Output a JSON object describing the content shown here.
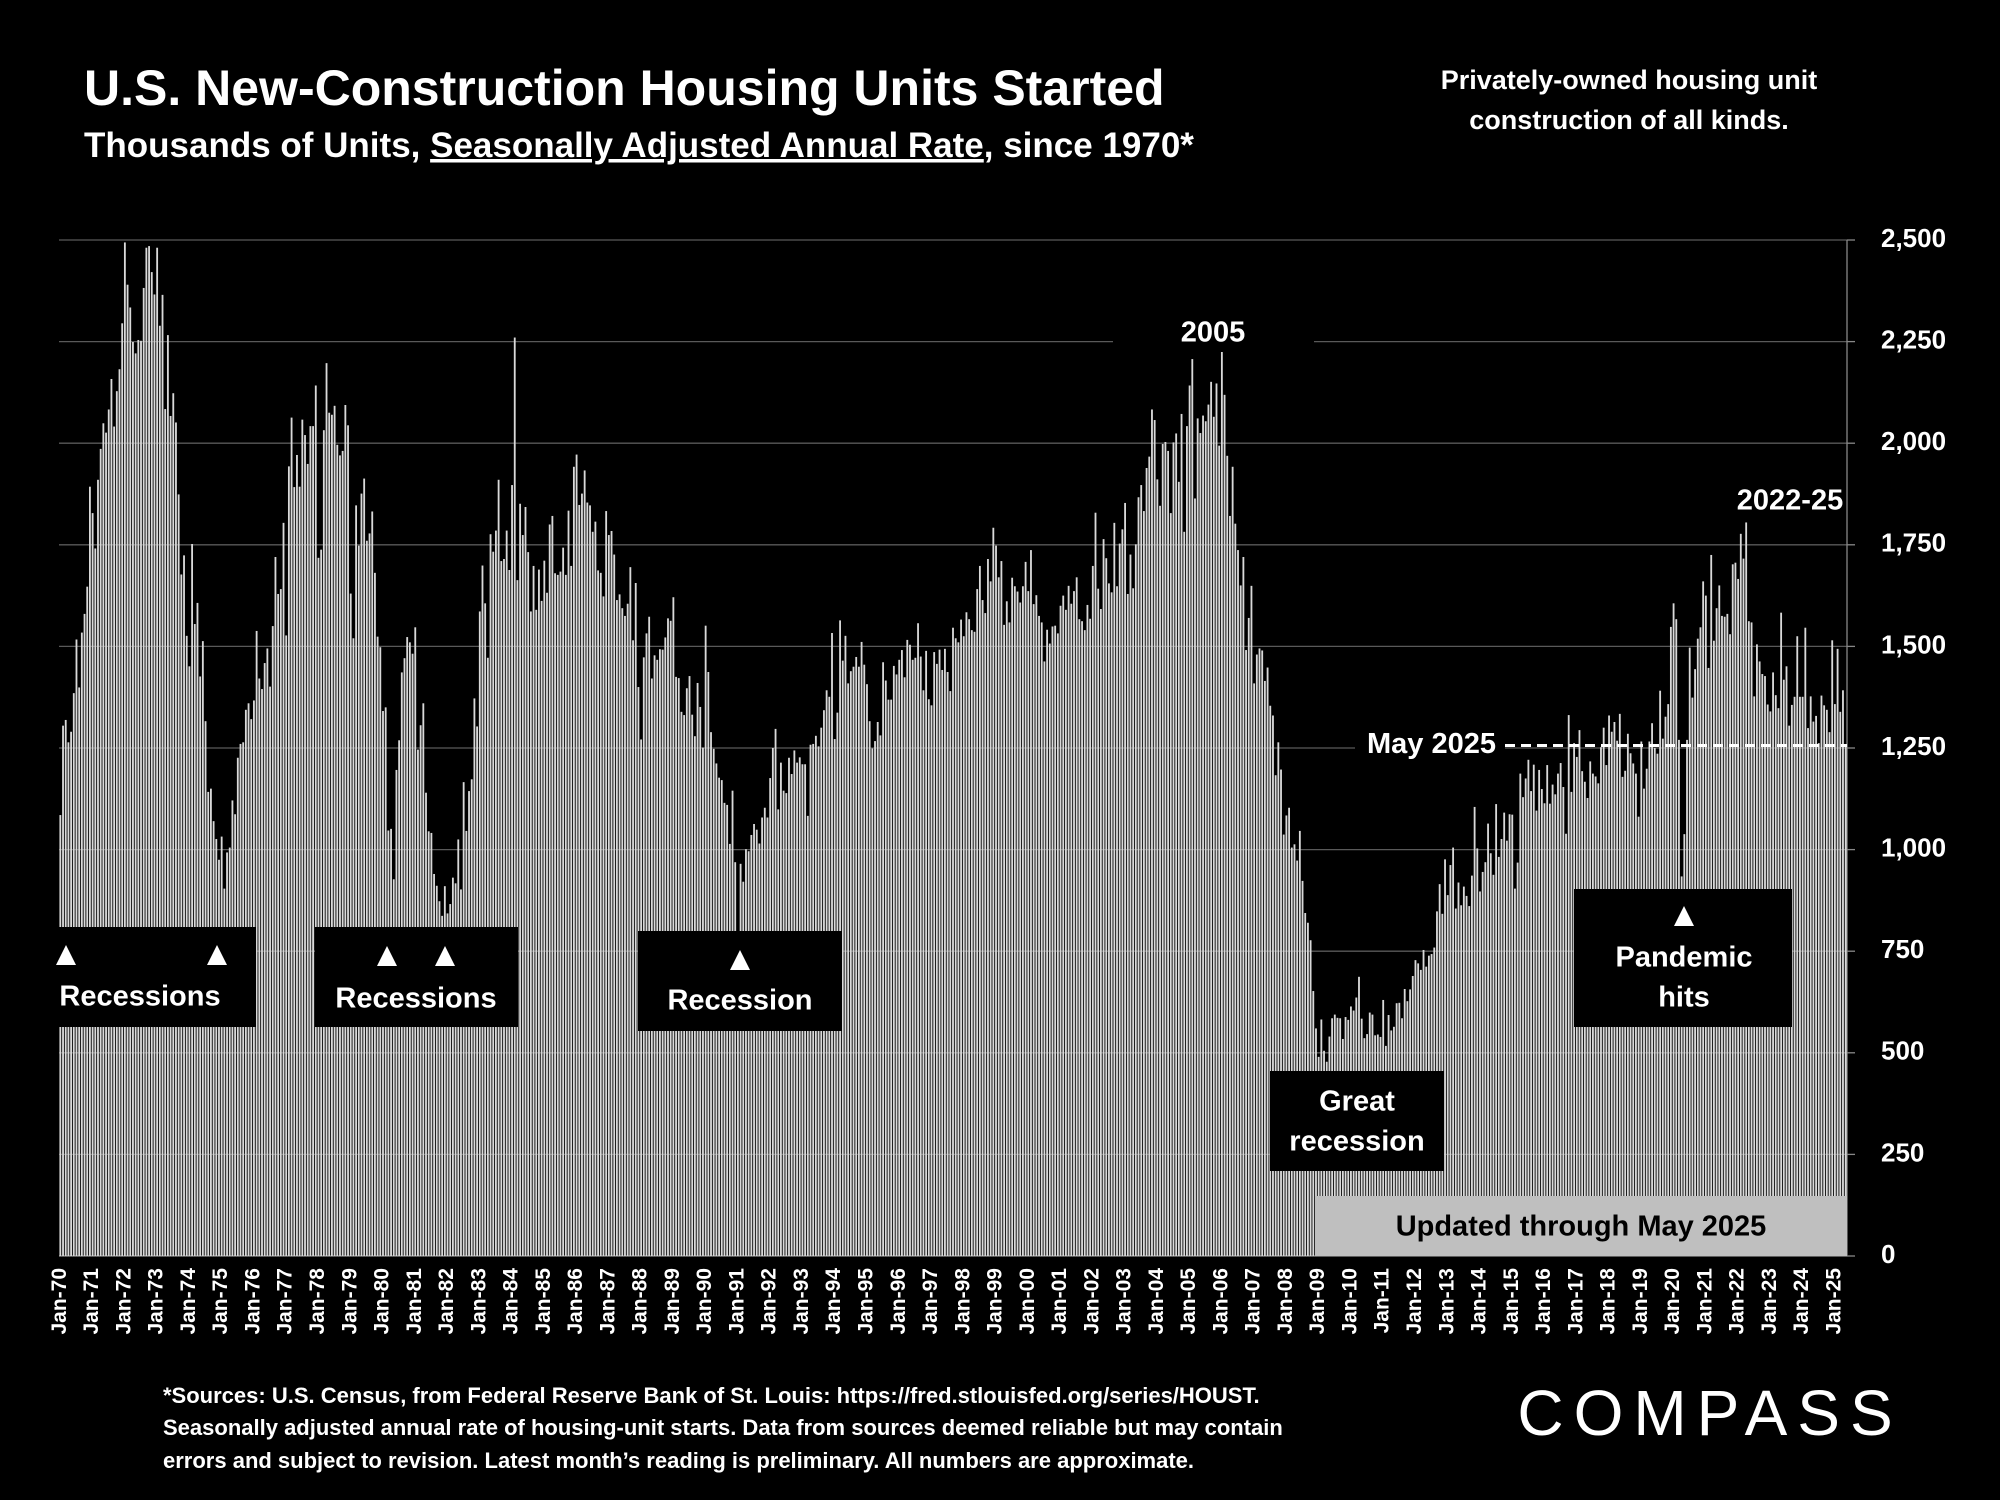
{
  "chart_data": {
    "type": "bar",
    "title": "U.S. New-Construction Housing Units Started",
    "subtitle_parts": [
      "Thousands of Units, ",
      "Seasonally Adjusted Annual Rate",
      ", since 1970*"
    ],
    "note": [
      "Privately-owned housing unit",
      "construction of all kinds."
    ],
    "color": "#d9d9d9",
    "grid": true,
    "ylim": [
      0,
      2500
    ],
    "yticks": [
      0,
      250,
      500,
      750,
      {
        "value": 1000,
        "label": "1,000"
      },
      {
        "value": 1250,
        "label": "1,250"
      },
      {
        "value": 1500,
        "label": "1,500"
      },
      {
        "value": 1750,
        "label": "1,750"
      },
      {
        "value": 2000,
        "label": "2,000"
      },
      {
        "value": 2250,
        "label": "2,250"
      },
      {
        "value": 2500,
        "label": "2,500"
      }
    ],
    "categories": [
      "Jan-70",
      null,
      null,
      null,
      null,
      null,
      null,
      null,
      null,
      null,
      null,
      null,
      "Jan-71",
      null,
      null,
      null,
      null,
      null,
      null,
      null,
      null,
      null,
      null,
      null,
      "Jan-72",
      null,
      null,
      null,
      null,
      null,
      null,
      null,
      null,
      null,
      null,
      null,
      "Jan-73",
      null,
      null,
      null,
      null,
      null,
      null,
      null,
      null,
      null,
      null,
      null,
      "Jan-74",
      null,
      null,
      null,
      null,
      null,
      null,
      null,
      null,
      null,
      null,
      null,
      "Jan-75",
      null,
      null,
      null,
      null,
      null,
      null,
      null,
      null,
      null,
      null,
      null,
      "Jan-76",
      null,
      null,
      null,
      null,
      null,
      null,
      null,
      null,
      null,
      null,
      null,
      "Jan-77",
      null,
      null,
      null,
      null,
      null,
      null,
      null,
      null,
      null,
      null,
      null,
      "Jan-78",
      null,
      null,
      null,
      null,
      null,
      null,
      null,
      null,
      null,
      null,
      null,
      "Jan-79",
      null,
      null,
      null,
      null,
      null,
      null,
      null,
      null,
      null,
      null,
      null,
      "Jan-80",
      null,
      null,
      null,
      null,
      null,
      null,
      null,
      null,
      null,
      null,
      null,
      "Jan-81",
      null,
      null,
      null,
      null,
      null,
      null,
      null,
      null,
      null,
      null,
      null,
      "Jan-82",
      null,
      null,
      null,
      null,
      null,
      null,
      null,
      null,
      null,
      null,
      null,
      "Jan-83",
      null,
      null,
      null,
      null,
      null,
      null,
      null,
      null,
      null,
      null,
      null,
      "Jan-84",
      null,
      null,
      null,
      null,
      null,
      null,
      null,
      null,
      null,
      null,
      null,
      "Jan-85",
      null,
      null,
      null,
      null,
      null,
      null,
      null,
      null,
      null,
      null,
      null,
      "Jan-86",
      null,
      null,
      null,
      null,
      null,
      null,
      null,
      null,
      null,
      null,
      null,
      "Jan-87",
      null,
      null,
      null,
      null,
      null,
      null,
      null,
      null,
      null,
      null,
      null,
      "Jan-88",
      null,
      null,
      null,
      null,
      null,
      null,
      null,
      null,
      null,
      null,
      null,
      "Jan-89",
      null,
      null,
      null,
      null,
      null,
      null,
      null,
      null,
      null,
      null,
      null,
      "Jan-90",
      null,
      null,
      null,
      null,
      null,
      null,
      null,
      null,
      null,
      null,
      null,
      "Jan-91",
      null,
      null,
      null,
      null,
      null,
      null,
      null,
      null,
      null,
      null,
      null,
      "Jan-92",
      null,
      null,
      null,
      null,
      null,
      null,
      null,
      null,
      null,
      null,
      null,
      "Jan-93",
      null,
      null,
      null,
      null,
      null,
      null,
      null,
      null,
      null,
      null,
      null,
      "Jan-94",
      null,
      null,
      null,
      null,
      null,
      null,
      null,
      null,
      null,
      null,
      null,
      "Jan-95",
      null,
      null,
      null,
      null,
      null,
      null,
      null,
      null,
      null,
      null,
      null,
      "Jan-96",
      null,
      null,
      null,
      null,
      null,
      null,
      null,
      null,
      null,
      null,
      null,
      "Jan-97",
      null,
      null,
      null,
      null,
      null,
      null,
      null,
      null,
      null,
      null,
      null,
      "Jan-98",
      null,
      null,
      null,
      null,
      null,
      null,
      null,
      null,
      null,
      null,
      null,
      "Jan-99",
      null,
      null,
      null,
      null,
      null,
      null,
      null,
      null,
      null,
      null,
      null,
      "Jan-00",
      null,
      null,
      null,
      null,
      null,
      null,
      null,
      null,
      null,
      null,
      null,
      "Jan-01",
      null,
      null,
      null,
      null,
      null,
      null,
      null,
      null,
      null,
      null,
      null,
      "Jan-02",
      null,
      null,
      null,
      null,
      null,
      null,
      null,
      null,
      null,
      null,
      null,
      "Jan-03",
      null,
      null,
      null,
      null,
      null,
      null,
      null,
      null,
      null,
      null,
      null,
      "Jan-04",
      null,
      null,
      null,
      null,
      null,
      null,
      null,
      null,
      null,
      null,
      null,
      "Jan-05",
      null,
      null,
      null,
      null,
      null,
      null,
      null,
      null,
      null,
      null,
      null,
      "Jan-06",
      null,
      null,
      null,
      null,
      null,
      null,
      null,
      null,
      null,
      null,
      null,
      "Jan-07",
      null,
      null,
      null,
      null,
      null,
      null,
      null,
      null,
      null,
      null,
      null,
      "Jan-08",
      null,
      null,
      null,
      null,
      null,
      null,
      null,
      null,
      null,
      null,
      null,
      "Jan-09",
      null,
      null,
      null,
      null,
      null,
      null,
      null,
      null,
      null,
      null,
      null,
      "Jan-10",
      null,
      null,
      null,
      null,
      null,
      null,
      null,
      null,
      null,
      null,
      null,
      "Jan-11",
      null,
      null,
      null,
      null,
      null,
      null,
      null,
      null,
      null,
      null,
      null,
      "Jan-12",
      null,
      null,
      null,
      null,
      null,
      null,
      null,
      null,
      null,
      null,
      null,
      "Jan-13",
      null,
      null,
      null,
      null,
      null,
      null,
      null,
      null,
      null,
      null,
      null,
      "Jan-14",
      null,
      null,
      null,
      null,
      null,
      null,
      null,
      null,
      null,
      null,
      null,
      "Jan-15",
      null,
      null,
      null,
      null,
      null,
      null,
      null,
      null,
      null,
      null,
      null,
      "Jan-16",
      null,
      null,
      null,
      null,
      null,
      null,
      null,
      null,
      null,
      null,
      null,
      "Jan-17",
      null,
      null,
      null,
      null,
      null,
      null,
      null,
      null,
      null,
      null,
      null,
      "Jan-18",
      null,
      null,
      null,
      null,
      null,
      null,
      null,
      null,
      null,
      null,
      null,
      "Jan-19",
      null,
      null,
      null,
      null,
      null,
      null,
      null,
      null,
      null,
      null,
      null,
      "Jan-20",
      null,
      null,
      null,
      null,
      null,
      null,
      null,
      null,
      null,
      null,
      null,
      "Jan-21",
      null,
      null,
      null,
      null,
      null,
      null,
      null,
      null,
      null,
      null,
      null,
      "Jan-22",
      null,
      null,
      null,
      null,
      null,
      null,
      null,
      null,
      null,
      null,
      null,
      "Jan-23",
      null,
      null,
      null,
      null,
      null,
      null,
      null,
      null,
      null,
      null,
      null,
      "Jan-24",
      null,
      null,
      null,
      null,
      null,
      null,
      null,
      null,
      null,
      null,
      null,
      "Jan-25",
      null,
      null,
      null,
      null
    ],
    "values": [
      1085,
      1305,
      1319,
      1264,
      1290,
      1385,
      1517,
      1399,
      1534,
      1580,
      1647,
      1893,
      1828,
      1741,
      1910,
      1986,
      2049,
      2026,
      2083,
      2158,
      2041,
      2128,
      2182,
      2295,
      2494,
      2390,
      2334,
      2249,
      2221,
      2254,
      2252,
      2382,
      2481,
      2485,
      2421,
      2366,
      2481,
      2289,
      2365,
      2084,
      2266,
      2067,
      2123,
      2051,
      1874,
      1677,
      1724,
      1526,
      1451,
      1752,
      1555,
      1607,
      1426,
      1513,
      1316,
      1142,
      1150,
      1070,
      1026,
      975,
      1032,
      904,
      993,
      1005,
      1121,
      1087,
      1226,
      1260,
      1264,
      1344,
      1360,
      1321,
      1367,
      1538,
      1421,
      1395,
      1459,
      1495,
      1401,
      1550,
      1720,
      1629,
      1641,
      1804,
      1527,
      1943,
      2063,
      1892,
      1971,
      1893,
      2058,
      2020,
      1949,
      2042,
      2042,
      2142,
      1718,
      1738,
      2032,
      2197,
      2075,
      2070,
      2092,
      1996,
      1970,
      1981,
      2094,
      2044,
      1630,
      1520,
      1847,
      1748,
      1876,
      1913,
      1760,
      1778,
      1832,
      1681,
      1524,
      1498,
      1341,
      1350,
      1047,
      1051,
      927,
      1196,
      1269,
      1436,
      1471,
      1523,
      1510,
      1482,
      1547,
      1246,
      1306,
      1360,
      1140,
      1045,
      1041,
      940,
      911,
      873,
      837,
      910,
      843,
      866,
      931,
      917,
      1025,
      902,
      1166,
      1046,
      1144,
      1173,
      1372,
      1303,
      1586,
      1699,
      1606,
      1472,
      1776,
      1733,
      1785,
      1910,
      1710,
      1715,
      1785,
      1688,
      1897,
      2260,
      1663,
      1851,
      1774,
      1843,
      1732,
      1586,
      1698,
      1590,
      1689,
      1612,
      1711,
      1632,
      1800,
      1821,
      1680,
      1676,
      1684,
      1743,
      1676,
      1834,
      1698,
      1942,
      1972,
      1848,
      1876,
      1933,
      1854,
      1847,
      1782,
      1807,
      1687,
      1681,
      1623,
      1833,
      1774,
      1784,
      1726,
      1614,
      1628,
      1594,
      1575,
      1605,
      1695,
      1515,
      1656,
      1400,
      1271,
      1473,
      1532,
      1573,
      1421,
      1478,
      1467,
      1493,
      1492,
      1522,
      1569,
      1563,
      1621,
      1425,
      1422,
      1339,
      1331,
      1397,
      1427,
      1332,
      1279,
      1410,
      1351,
      1251,
      1551,
      1437,
      1289,
      1248,
      1212,
      1177,
      1171,
      1115,
      1110,
      1014,
      1145,
      969,
      798,
      965,
      921,
      1001,
      996,
      1036,
      1063,
      1049,
      1015,
      1079,
      1103,
      1079,
      1176,
      1250,
      1297,
      1099,
      1214,
      1145,
      1139,
      1226,
      1186,
      1244,
      1214,
      1227,
      1210,
      1210,
      1083,
      1258,
      1260,
      1280,
      1254,
      1300,
      1343,
      1392,
      1376,
      1533,
      1272,
      1337,
      1564,
      1465,
      1526,
      1409,
      1439,
      1450,
      1474,
      1450,
      1511,
      1455,
      1407,
      1316,
      1249,
      1267,
      1314,
      1281,
      1461,
      1416,
      1369,
      1369,
      1452,
      1431,
      1467,
      1491,
      1424,
      1516,
      1504,
      1467,
      1472,
      1557,
      1475,
      1392,
      1489,
      1370,
      1355,
      1486,
      1457,
      1492,
      1442,
      1494,
      1437,
      1390,
      1546,
      1520,
      1510,
      1566,
      1525,
      1584,
      1567,
      1540,
      1536,
      1641,
      1698,
      1614,
      1582,
      1715,
      1660,
      1792,
      1748,
      1670,
      1710,
      1553,
      1611,
      1559,
      1669,
      1648,
      1635,
      1608,
      1648,
      1708,
      1636,
      1737,
      1604,
      1626,
      1575,
      1559,
      1463,
      1541,
      1507,
      1549,
      1551,
      1532,
      1600,
      1625,
      1590,
      1649,
      1605,
      1636,
      1670,
      1567,
      1562,
      1540,
      1602,
      1568,
      1698,
      1829,
      1642,
      1592,
      1764,
      1717,
      1655,
      1633,
      1804,
      1648,
      1753,
      1788,
      1853,
      1629,
      1726,
      1643,
      1751,
      1867,
      1897,
      1833,
      1939,
      1967,
      2083,
      2057,
      1911,
      1846,
      1998,
      2003,
      1981,
      1828,
      2002,
      2024,
      1905,
      2072,
      1782,
      2042,
      2142,
      2207,
      1864,
      2061,
      2025,
      2068,
      2054,
      2095,
      2151,
      2065,
      2147,
      1994,
      2273,
      2119,
      1969,
      1821,
      1942,
      1802,
      1737,
      1650,
      1720,
      1491,
      1570,
      1649,
      1409,
      1480,
      1495,
      1490,
      1415,
      1448,
      1354,
      1330,
      1183,
      1264,
      1197,
      1037,
      1084,
      1103,
      1005,
      1013,
      973,
      1046,
      923,
      844,
      820,
      777,
      652,
      560,
      490,
      582,
      505,
      478,
      540,
      585,
      594,
      586,
      585,
      534,
      588,
      581,
      614,
      604,
      636,
      687,
      584,
      536,
      546,
      599,
      594,
      543,
      545,
      539,
      630,
      517,
      593,
      555,
      564,
      622,
      623,
      585,
      657,
      627,
      656,
      689,
      728,
      720,
      704,
      753,
      712,
      739,
      743,
      759,
      848,
      915,
      842,
      976,
      888,
      962,
      1005,
      855,
      919,
      863,
      909,
      886,
      861,
      936,
      1105,
      1003,
      897,
      945,
      969,
      1064,
      991,
      938,
      1112,
      982,
      1026,
      1091,
      1022,
      1087,
      1086,
      904,
      968,
      1187,
      1129,
      1175,
      1221,
      1144,
      1209,
      1096,
      1196,
      1149,
      1114,
      1208,
      1113,
      1160,
      1136,
      1187,
      1213,
      1154,
      1039,
      1331,
      1142,
      1262,
      1228,
      1294,
      1193,
      1167,
      1127,
      1217,
      1187,
      1180,
      1163,
      1252,
      1300,
      1208,
      1330,
      1290,
      1314,
      1268,
      1334,
      1179,
      1194,
      1285,
      1237,
      1212,
      1187,
      1081,
      1266,
      1150,
      1199,
      1266,
      1311,
      1250,
      1236,
      1391,
      1273,
      1327,
      1358,
      1548,
      1606,
      1567,
      1270,
      934,
      1038,
      1270,
      1497,
      1374,
      1444,
      1519,
      1547,
      1660,
      1625,
      1447,
      1725,
      1514,
      1594,
      1650,
      1575,
      1573,
      1580,
      1530,
      1702,
      1706,
      1666,
      1777,
      1716,
      1805,
      1562,
      1559,
      1377,
      1505,
      1463,
      1432,
      1427,
      1357,
      1340,
      1436,
      1380,
      1348,
      1583,
      1418,
      1451,
      1305,
      1356,
      1376,
      1525,
      1376,
      1376,
      1546,
      1299,
      1377,
      1315,
      1329,
      1262,
      1379,
      1355,
      1344,
      1289,
      1515,
      1358,
      1494,
      1339,
      1392,
      1256
    ],
    "annotations": {
      "peak_2005": "2005",
      "recent": "2022-25",
      "latest": "May 2025",
      "recessions_1": "Recessions",
      "recessions_2": "Recessions",
      "recession_3": "Recession",
      "great_recession": [
        "Great",
        "recession"
      ],
      "pandemic": [
        "Pandemic",
        "hits"
      ],
      "updated": "Updated through May 2025"
    },
    "footnote": [
      "*Sources: U.S. Census, from Federal Reserve Bank of St. Louis:  https://fred.stlouisfed.org/series/HOUST.",
      "Seasonally adjusted annual rate of housing-unit starts. Data from sources deemed reliable but may contain",
      "errors and subject to revision. Latest month’s reading is preliminary. All numbers are approximate."
    ],
    "logo": "COMPASS"
  }
}
